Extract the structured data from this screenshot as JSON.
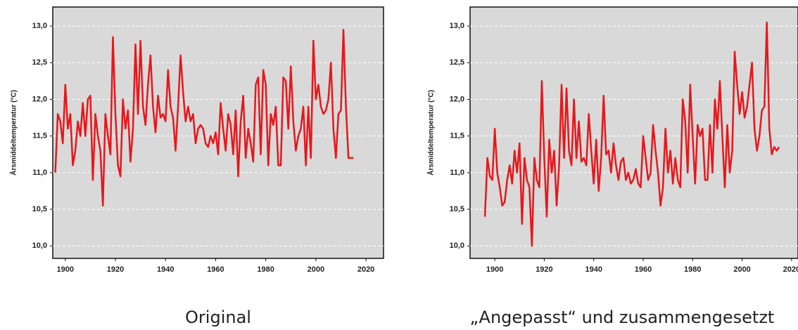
{
  "chart_data": [
    {
      "type": "line",
      "caption": "Original",
      "ylabel": "Årsmiddeltemperatur (°C)",
      "grid": true,
      "xlim": [
        1895,
        2027
      ],
      "xticks": [
        1900,
        1920,
        1940,
        1960,
        1980,
        2000,
        2020
      ],
      "ylim": [
        9.83,
        13.26
      ],
      "yticks": [
        {
          "value": 10,
          "label": "10,0"
        },
        {
          "value": 10.5,
          "label": "10,5"
        },
        {
          "value": 11,
          "label": "11,0"
        },
        {
          "value": 11.5,
          "label": "11,5"
        },
        {
          "value": 12,
          "label": "12,0"
        },
        {
          "value": 12.5,
          "label": "12,5"
        },
        {
          "value": 13,
          "label": "13,0"
        }
      ],
      "x": [
        1896,
        1897,
        1898,
        1899,
        1900,
        1901,
        1902,
        1903,
        1904,
        1905,
        1906,
        1907,
        1908,
        1909,
        1910,
        1911,
        1912,
        1913,
        1914,
        1915,
        1916,
        1917,
        1918,
        1919,
        1920,
        1921,
        1922,
        1923,
        1924,
        1925,
        1926,
        1927,
        1928,
        1929,
        1930,
        1931,
        1932,
        1933,
        1934,
        1935,
        1936,
        1937,
        1938,
        1939,
        1940,
        1941,
        1942,
        1943,
        1944,
        1945,
        1946,
        1947,
        1948,
        1949,
        1950,
        1951,
        1952,
        1953,
        1954,
        1955,
        1956,
        1957,
        1958,
        1959,
        1960,
        1961,
        1962,
        1963,
        1964,
        1965,
        1966,
        1967,
        1968,
        1969,
        1970,
        1971,
        1972,
        1973,
        1974,
        1975,
        1976,
        1977,
        1978,
        1979,
        1980,
        1981,
        1982,
        1983,
        1984,
        1985,
        1986,
        1987,
        1988,
        1989,
        1990,
        1991,
        1992,
        1993,
        1994,
        1995,
        1996,
        1997,
        1998,
        1999,
        2000,
        2001,
        2002,
        2003,
        2004,
        2005,
        2006,
        2007,
        2008,
        2009,
        2010,
        2011,
        2012,
        2013,
        2014,
        2015
      ],
      "series": [
        {
          "color": "#e8171b",
          "values": [
            11.0,
            11.8,
            11.7,
            11.4,
            12.2,
            11.6,
            11.8,
            11.1,
            11.3,
            11.7,
            11.5,
            11.95,
            11.5,
            12.0,
            12.05,
            10.9,
            11.8,
            11.5,
            11.3,
            10.55,
            11.8,
            11.5,
            11.25,
            12.85,
            11.8,
            11.1,
            10.95,
            12.0,
            11.6,
            11.85,
            11.15,
            11.6,
            12.75,
            11.8,
            12.8,
            11.9,
            11.65,
            12.2,
            12.6,
            11.9,
            11.55,
            12.05,
            11.75,
            11.8,
            11.7,
            12.4,
            11.9,
            11.75,
            11.3,
            11.9,
            12.6,
            12.1,
            11.7,
            11.9,
            11.7,
            11.8,
            11.4,
            11.6,
            11.65,
            11.6,
            11.4,
            11.35,
            11.5,
            11.4,
            11.55,
            11.25,
            11.95,
            11.6,
            11.3,
            11.8,
            11.65,
            11.25,
            11.85,
            10.95,
            11.7,
            12.05,
            11.2,
            11.6,
            11.4,
            11.15,
            12.2,
            12.3,
            11.25,
            12.4,
            12.2,
            11.1,
            11.8,
            11.65,
            11.9,
            11.1,
            11.1,
            12.3,
            12.25,
            11.6,
            12.45,
            11.7,
            11.3,
            11.5,
            11.6,
            11.9,
            11.1,
            11.9,
            11.2,
            12.8,
            12.0,
            12.2,
            11.9,
            11.8,
            11.85,
            12.0,
            12.5,
            11.6,
            11.2,
            11.8,
            11.85,
            12.95,
            11.9,
            11.2,
            11.2,
            11.2
          ]
        }
      ]
    },
    {
      "type": "line",
      "caption": "„Angepasst“ und zusammengesetzt",
      "ylabel": "Årsmiddeltemperatur (°C)",
      "grid": true,
      "xlim": [
        1890,
        2022.6
      ],
      "xticks": [
        1900,
        1920,
        1940,
        1960,
        1980,
        2000,
        2020
      ],
      "ylim": [
        9.83,
        13.26
      ],
      "yticks": [
        {
          "value": 10,
          "label": "10,0"
        },
        {
          "value": 10.5,
          "label": "10,5"
        },
        {
          "value": 11,
          "label": "11,0"
        },
        {
          "value": 11.5,
          "label": "11,5"
        },
        {
          "value": 12,
          "label": "12,0"
        },
        {
          "value": 12.5,
          "label": "12,5"
        },
        {
          "value": 13,
          "label": "13,0"
        }
      ],
      "x": [
        1896,
        1897,
        1898,
        1899,
        1900,
        1901,
        1902,
        1903,
        1904,
        1905,
        1906,
        1907,
        1908,
        1909,
        1910,
        1911,
        1912,
        1913,
        1914,
        1915,
        1916,
        1917,
        1918,
        1919,
        1920,
        1921,
        1922,
        1923,
        1924,
        1925,
        1926,
        1927,
        1928,
        1929,
        1930,
        1931,
        1932,
        1933,
        1934,
        1935,
        1936,
        1937,
        1938,
        1939,
        1940,
        1941,
        1942,
        1943,
        1944,
        1945,
        1946,
        1947,
        1948,
        1949,
        1950,
        1951,
        1952,
        1953,
        1954,
        1955,
        1956,
        1957,
        1958,
        1959,
        1960,
        1961,
        1962,
        1963,
        1964,
        1965,
        1966,
        1967,
        1968,
        1969,
        1970,
        1971,
        1972,
        1973,
        1974,
        1975,
        1976,
        1977,
        1978,
        1979,
        1980,
        1981,
        1982,
        1983,
        1984,
        1985,
        1986,
        1987,
        1988,
        1989,
        1990,
        1991,
        1992,
        1993,
        1994,
        1995,
        1996,
        1997,
        1998,
        1999,
        2000,
        2001,
        2002,
        2003,
        2004,
        2005,
        2006,
        2007,
        2008,
        2009,
        2010,
        2011,
        2012,
        2013,
        2014,
        2015
      ],
      "series": [
        {
          "color": "#e8171b",
          "values": [
            10.4,
            11.2,
            10.95,
            10.9,
            11.6,
            11.0,
            10.8,
            10.55,
            10.6,
            10.9,
            11.1,
            10.85,
            11.3,
            11.0,
            11.4,
            10.3,
            11.2,
            10.9,
            10.8,
            10.0,
            11.2,
            10.9,
            10.8,
            12.25,
            11.2,
            10.4,
            11.45,
            11.0,
            11.3,
            10.55,
            11.1,
            12.2,
            11.2,
            12.15,
            11.3,
            11.1,
            12.0,
            11.2,
            11.7,
            11.15,
            11.2,
            11.1,
            11.8,
            11.3,
            10.85,
            11.45,
            10.75,
            11.2,
            12.05,
            11.25,
            11.3,
            11.0,
            11.4,
            11.1,
            10.9,
            11.15,
            11.2,
            10.9,
            11.0,
            10.85,
            10.9,
            11.05,
            10.85,
            10.8,
            11.5,
            11.2,
            10.9,
            11.0,
            11.65,
            11.3,
            11.0,
            10.55,
            10.8,
            11.6,
            11.0,
            11.3,
            10.85,
            11.2,
            10.9,
            10.8,
            12.0,
            11.7,
            11.0,
            12.2,
            11.5,
            10.85,
            11.65,
            11.5,
            11.6,
            10.9,
            10.9,
            11.65,
            11.0,
            12.0,
            11.6,
            12.25,
            11.5,
            10.8,
            11.65,
            11.0,
            11.3,
            12.65,
            12.2,
            11.8,
            12.1,
            11.75,
            11.9,
            12.2,
            12.5,
            11.6,
            11.3,
            11.5,
            11.85,
            11.9,
            13.05,
            11.6,
            11.25,
            11.35,
            11.3,
            11.35
          ]
        }
      ]
    }
  ]
}
